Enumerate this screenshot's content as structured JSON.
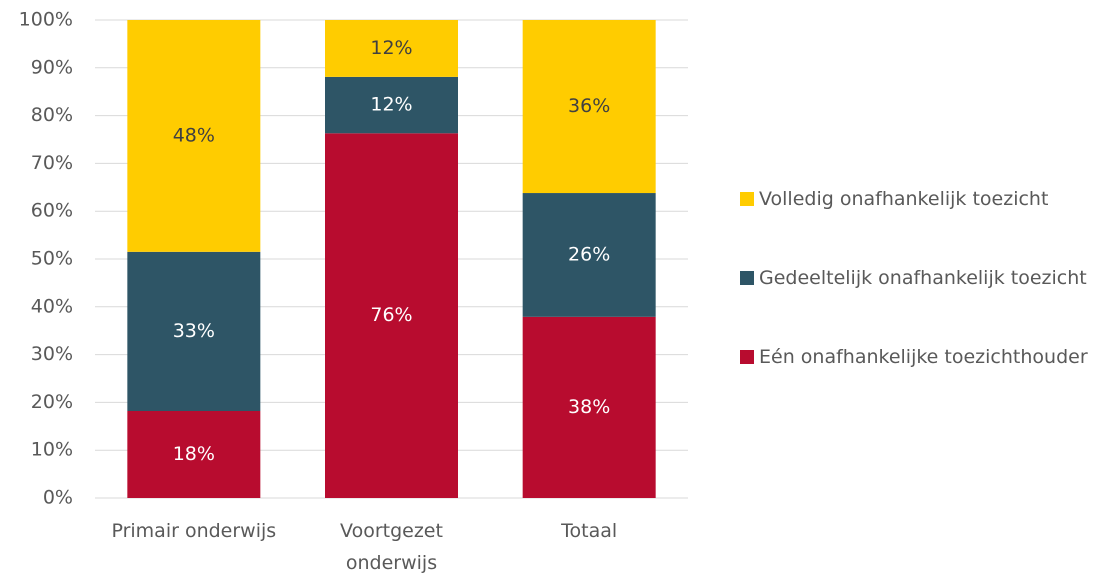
{
  "chart_data": {
    "type": "stacked_bar",
    "categories": [
      "Primair onderwijs",
      "Voortgezet onderwijs",
      "Totaal"
    ],
    "series": [
      {
        "name": "Eén onafhankelijke toezichthouder",
        "color": "#b80c2f",
        "values": [
          18.2,
          76.3,
          37.9
        ],
        "value_labels": [
          "18%",
          "76%",
          "38%"
        ]
      },
      {
        "name": "Gedeeltelijk onafhankelijk toezicht",
        "color": "#2e5566",
        "values": [
          33.3,
          11.8,
          25.9
        ],
        "value_labels": [
          "33%",
          "12%",
          "26%"
        ]
      },
      {
        "name": "Volledig onafhankelijk toezicht",
        "color": "#ffcc00",
        "values": [
          48.5,
          11.9,
          36.2
        ],
        "value_labels": [
          "48%",
          "12%",
          "36%"
        ]
      }
    ],
    "ylim": [
      0,
      100
    ],
    "yticks": [
      {
        "value": 0,
        "label": "0%"
      },
      {
        "value": 10,
        "label": "10%"
      },
      {
        "value": 20,
        "label": "20%"
      },
      {
        "value": 30,
        "label": "30%"
      },
      {
        "value": 40,
        "label": "40%"
      },
      {
        "value": 50,
        "label": "50%"
      },
      {
        "value": 60,
        "label": "60%"
      },
      {
        "value": 70,
        "label": "70%"
      },
      {
        "value": 80,
        "label": "80%"
      },
      {
        "value": 90,
        "label": "90%"
      },
      {
        "value": 100,
        "label": "100%"
      }
    ],
    "grid": true,
    "legend": "right"
  }
}
